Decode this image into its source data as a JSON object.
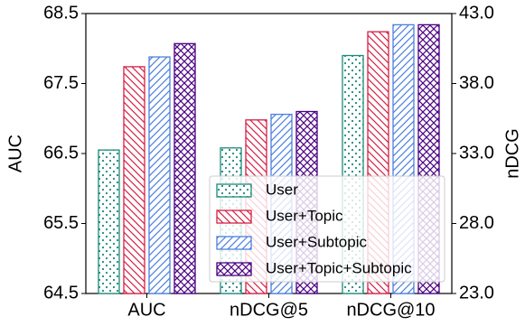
{
  "chart_data": {
    "type": "bar",
    "categories": [
      "AUC",
      "nDCG@5",
      "nDCG@10"
    ],
    "category_axes": [
      "y",
      "y2",
      "y2"
    ],
    "ylabel": "AUC",
    "y2label": "nDCG",
    "ylim": [
      64.5,
      68.5
    ],
    "yticks": [
      64.5,
      65.5,
      66.5,
      67.5,
      68.5
    ],
    "y2lim": [
      23,
      43
    ],
    "y2ticks": [
      {
        "value": 23,
        "label": "23.0"
      },
      {
        "value": 28,
        "label": "28.0"
      },
      {
        "value": 33,
        "label": "33.0"
      },
      {
        "value": 38,
        "label": "38.0"
      },
      {
        "value": 43,
        "label": "43.0"
      }
    ],
    "grid": false,
    "legend": "lower right",
    "series": [
      {
        "name": "User",
        "color": "#1a8a7a",
        "hatch": "dots",
        "values": [
          66.55,
          33.4,
          40.0
        ]
      },
      {
        "name": "User+Topic",
        "color": "#d62045",
        "hatch": "backslash",
        "values": [
          67.74,
          35.4,
          41.7
        ]
      },
      {
        "name": "User+Subtopic",
        "color": "#4c7fe0",
        "hatch": "slash",
        "values": [
          67.88,
          35.8,
          42.2
        ]
      },
      {
        "name": "User+Topic+Subtopic",
        "color": "#4b0082",
        "hatch": "cross",
        "values": [
          68.07,
          36.0,
          42.2
        ]
      }
    ]
  }
}
